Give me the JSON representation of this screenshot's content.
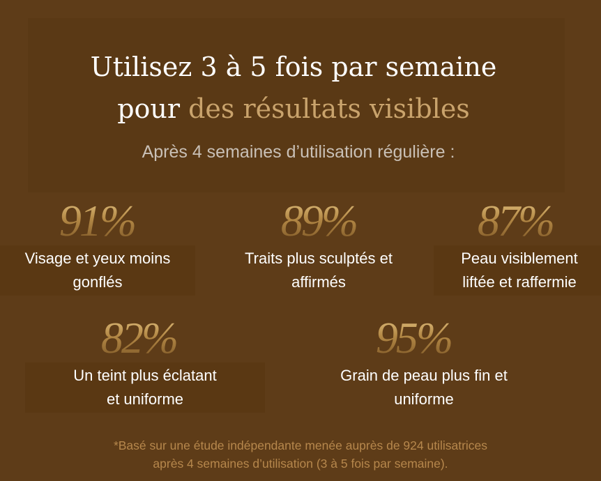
{
  "headline": {
    "line1": "Utilisez 3 à 5 fois par semaine",
    "line2_plain": "pour ",
    "line2_gold": "des résultats visibles"
  },
  "subtitle": "Après 4 semaines d’utilisation régulière :",
  "stats": [
    {
      "value": "91%",
      "line1": "Visage et yeux moins",
      "line2": "gonflés"
    },
    {
      "value": "89%",
      "line1": "Traits plus sculptés et",
      "line2": "affirmés"
    },
    {
      "value": "87%",
      "line1": "Peau visiblement",
      "line2": "liftée et raffermie"
    },
    {
      "value": "82%",
      "line1": "Un teint plus éclatant",
      "line2": "et uniforme"
    },
    {
      "value": "95%",
      "line1": "Grain de peau plus fin et",
      "line2": "uniforme"
    }
  ],
  "footnote": {
    "line1": "*Basé sur une étude indépendante menée auprès de 924 utilisatrices",
    "line2": "après 4 semaines d’utilisation (3 à 5 fois par semaine)."
  },
  "colors": {
    "background": "#5e3c18",
    "accent_gold": "#c9a36c",
    "footnote": "#b6874c",
    "text": "#ffffff",
    "subtitle": "#c9c0b6"
  }
}
